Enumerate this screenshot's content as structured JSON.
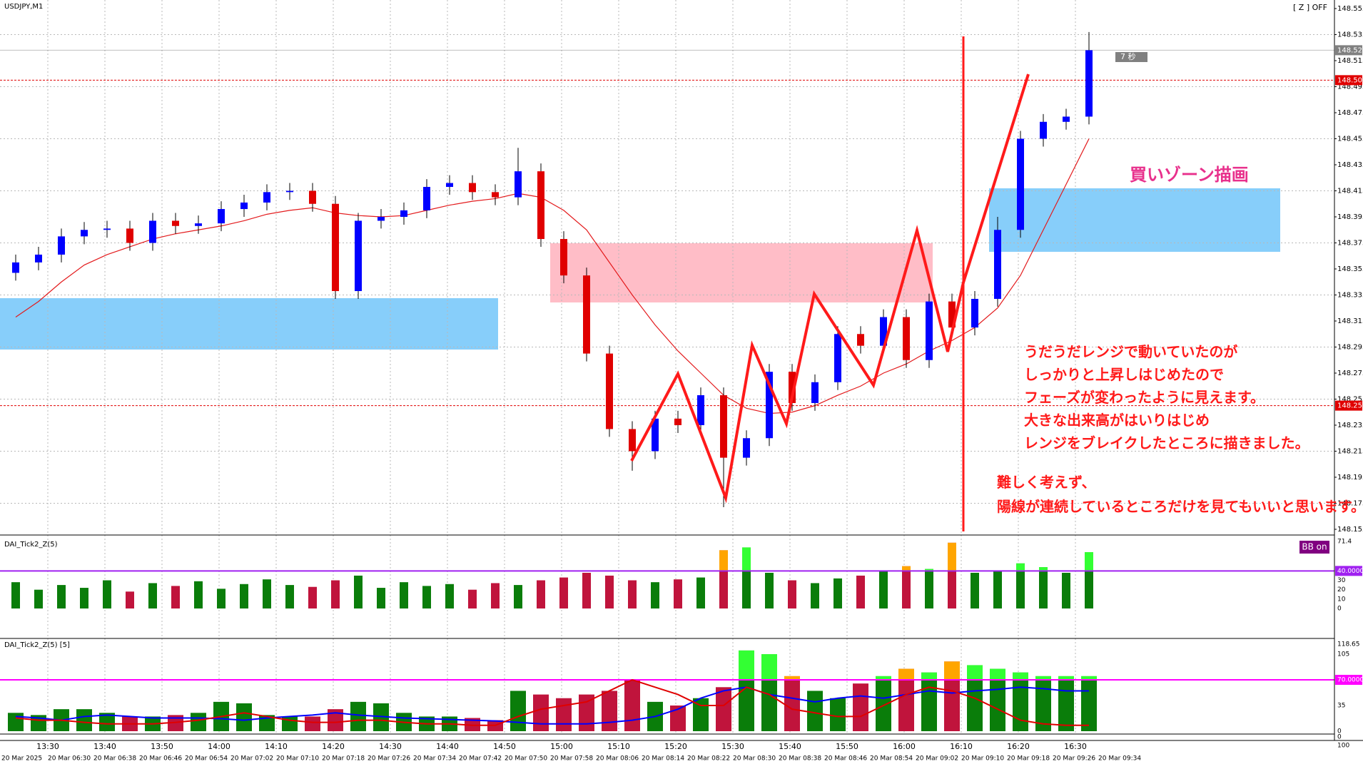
{
  "chart_data": [
    {
      "type": "candlestick",
      "title": "USDJPY,M1",
      "open": [
        148.352,
        148.36,
        148.366,
        148.38,
        148.385,
        148.386,
        148.375,
        148.392,
        148.388,
        148.39,
        148.401,
        148.406,
        148.414,
        148.415,
        148.405,
        148.338,
        148.392,
        148.395,
        148.4,
        148.418,
        148.421,
        148.414,
        148.41,
        148.43,
        148.378,
        148.35,
        148.29,
        148.232,
        148.215,
        148.24,
        148.235,
        148.258,
        148.21,
        148.225,
        148.276,
        148.252,
        148.268,
        148.305,
        148.296,
        148.318,
        148.285,
        148.33,
        148.31,
        148.332,
        148.385,
        148.455,
        148.468,
        148.472
      ],
      "high": [
        148.366,
        148.372,
        148.386,
        148.391,
        148.392,
        148.392,
        148.398,
        148.398,
        148.396,
        148.407,
        148.412,
        148.42,
        148.421,
        148.421,
        148.411,
        148.398,
        148.401,
        148.406,
        148.424,
        148.427,
        148.427,
        148.42,
        148.448,
        148.436,
        148.384,
        148.356,
        148.296,
        148.238,
        148.246,
        148.246,
        148.264,
        148.264,
        148.231,
        148.282,
        148.282,
        148.274,
        148.311,
        148.311,
        148.324,
        148.324,
        148.336,
        148.336,
        148.338,
        148.395,
        148.461,
        148.474,
        148.478,
        148.537
      ],
      "low": [
        148.346,
        148.354,
        148.36,
        148.374,
        148.379,
        148.369,
        148.369,
        148.382,
        148.382,
        148.384,
        148.395,
        148.4,
        148.408,
        148.399,
        148.332,
        148.332,
        148.386,
        148.389,
        148.394,
        148.412,
        148.408,
        148.404,
        148.404,
        148.372,
        148.344,
        148.284,
        148.226,
        148.2,
        148.209,
        148.229,
        148.229,
        148.172,
        148.204,
        148.219,
        148.246,
        148.246,
        148.262,
        148.29,
        148.29,
        148.279,
        148.279,
        148.304,
        148.304,
        148.326,
        148.379,
        148.449,
        148.462,
        148.466
      ],
      "close": [
        148.36,
        148.366,
        148.38,
        148.385,
        148.386,
        148.375,
        148.392,
        148.388,
        148.39,
        148.401,
        148.406,
        148.414,
        148.415,
        148.405,
        148.338,
        148.392,
        148.395,
        148.4,
        148.418,
        148.421,
        148.414,
        148.41,
        148.43,
        148.378,
        148.35,
        148.29,
        148.232,
        148.215,
        148.24,
        148.235,
        148.258,
        148.21,
        148.225,
        148.276,
        148.252,
        148.268,
        148.305,
        148.296,
        148.318,
        148.285,
        148.33,
        148.31,
        148.332,
        148.385,
        148.455,
        148.468,
        148.472,
        148.523
      ],
      "up_color": "#0000ff",
      "down_color": "#e00000",
      "ma": {
        "color": "#e31a1c",
        "values": [
          148.318,
          148.33,
          148.345,
          148.358,
          148.366,
          148.372,
          148.378,
          148.382,
          148.385,
          148.388,
          148.392,
          148.397,
          148.4,
          148.402,
          148.398,
          148.396,
          148.395,
          148.396,
          148.4,
          148.404,
          148.407,
          148.409,
          148.413,
          148.41,
          148.4,
          148.385,
          148.36,
          148.335,
          148.312,
          148.292,
          148.275,
          148.258,
          148.248,
          148.244,
          148.245,
          148.25,
          148.258,
          148.265,
          148.275,
          148.282,
          148.292,
          148.3,
          148.31,
          148.325,
          148.35,
          148.385,
          148.42,
          148.455
        ]
      },
      "ylim": [
        148.155,
        148.555
      ],
      "yticks": [
        148.555,
        148.535,
        148.515,
        148.495,
        148.475,
        148.455,
        148.435,
        148.415,
        148.395,
        148.375,
        148.355,
        148.335,
        148.315,
        148.295,
        148.275,
        148.255,
        148.235,
        148.215,
        148.195,
        148.175,
        148.155
      ],
      "price_lines": [
        148.523,
        {
          "value": 148.5,
          "label": "148.500"
        },
        {
          "value": 148.25,
          "label": "148.250"
        }
      ],
      "price_line_colors": [
        "#808080",
        "#e00000",
        "#e00000"
      ],
      "countdown": "7 秒",
      "zoom_status": "[ Z ] OFF",
      "grid": true
    },
    {
      "type": "bar",
      "title": "DAI_Tick2_Z(5)",
      "badge": "BB on",
      "values": [
        28,
        20,
        25,
        22,
        30,
        18,
        27,
        24,
        29,
        21,
        26,
        31,
        25,
        23,
        30,
        35,
        22,
        28,
        24,
        26,
        20,
        27,
        25,
        30,
        33,
        38,
        35,
        30,
        28,
        31,
        33,
        62,
        65,
        38,
        30,
        27,
        32,
        35,
        40,
        45,
        42,
        70,
        38,
        40,
        48,
        44,
        38,
        60
      ],
      "ylim": [
        0,
        71.4
      ],
      "yticks": [
        0,
        10,
        20,
        30,
        71.4
      ],
      "level": {
        "value": 40,
        "label": "40.0000"
      },
      "level_color": "#a020f0",
      "colors": {
        "up": "#0a7d0a",
        "down": "#c0143c",
        "over_up": "#33ff33",
        "over_down": "#ffa500"
      }
    },
    {
      "type": "bar-line",
      "title": "DAI_Tick2_Z(5) [5]",
      "values": [
        25,
        22,
        30,
        30,
        25,
        20,
        20,
        22,
        25,
        40,
        38,
        22,
        20,
        20,
        30,
        40,
        38,
        25,
        20,
        20,
        18,
        15,
        55,
        50,
        45,
        50,
        55,
        70,
        40,
        35,
        45,
        60,
        110,
        105,
        75,
        55,
        45,
        65,
        75,
        85,
        80,
        95,
        90,
        85,
        80,
        75,
        75,
        75
      ],
      "series": [
        {
          "name": "blue",
          "color": "#0000ff",
          "values": [
            20,
            18,
            15,
            20,
            22,
            20,
            18,
            18,
            18,
            17,
            15,
            18,
            20,
            22,
            25,
            22,
            20,
            18,
            17,
            16,
            15,
            14,
            12,
            10,
            10,
            10,
            12,
            15,
            20,
            30,
            45,
            55,
            60,
            50,
            45,
            40,
            45,
            48,
            45,
            50,
            55,
            52,
            55,
            57,
            60,
            58,
            55,
            55
          ]
        },
        {
          "name": "red",
          "color": "#e00000",
          "values": [
            18,
            15,
            15,
            12,
            10,
            10,
            10,
            12,
            15,
            20,
            25,
            20,
            15,
            12,
            12,
            15,
            15,
            12,
            10,
            10,
            8,
            8,
            20,
            30,
            35,
            40,
            55,
            70,
            60,
            50,
            35,
            35,
            60,
            50,
            30,
            25,
            20,
            20,
            35,
            50,
            60,
            55,
            45,
            30,
            15,
            10,
            8,
            8
          ]
        }
      ],
      "ylim": [
        0,
        118.65
      ],
      "yticks": [
        0,
        35,
        105,
        118.65
      ],
      "level": {
        "value": 70,
        "label": "70.0000"
      },
      "level_color": "#ff00ff",
      "colors": {
        "up": "#0a7d0a",
        "down": "#c0143c",
        "over_up": "#33ff33",
        "over_down": "#ffa500"
      }
    },
    {
      "type": "strip",
      "ylim": [
        0,
        100
      ],
      "yticks": [
        0,
        100
      ]
    }
  ],
  "time_axis": {
    "times": [
      "13:30",
      "13:40",
      "13:50",
      "14:00",
      "14:10",
      "14:20",
      "14:30",
      "14:40",
      "14:50",
      "15:00",
      "15:10",
      "15:20",
      "15:30",
      "15:40",
      "15:50",
      "16:00",
      "16:10",
      "16:20",
      "16:30"
    ],
    "dates": [
      "20 Mar 2025",
      "20 Mar 06:30",
      "20 Mar 06:38",
      "20 Mar 06:46",
      "20 Mar 06:54",
      "20 Mar 07:02",
      "20 Mar 07:10",
      "20 Mar 07:18",
      "20 Mar 07:26",
      "20 Mar 07:34",
      "20 Mar 07:42",
      "20 Mar 07:50",
      "20 Mar 07:58",
      "20 Mar 08:06",
      "20 Mar 08:14",
      "20 Mar 08:22",
      "20 Mar 08:30",
      "20 Mar 08:38",
      "20 Mar 08:46",
      "20 Mar 08:54",
      "20 Mar 09:02",
      "20 Mar 09:10",
      "20 Mar 09:18",
      "20 Mar 09:26",
      "20 Mar 09:34"
    ]
  },
  "annotations": {
    "zone_label": "買いゾーン描画",
    "notes": [
      "うだうだレンジで動いていたのが",
      "しっかりと上昇しはじめたので",
      "フェーズが変わったように見えます。",
      "大きな出来高がはいりはじめ",
      "レンジをブレイクしたところに描きました。"
    ],
    "notes2": [
      "難しく考えず、",
      "陽線が連続しているところだけを見てもいいと思います。"
    ]
  }
}
